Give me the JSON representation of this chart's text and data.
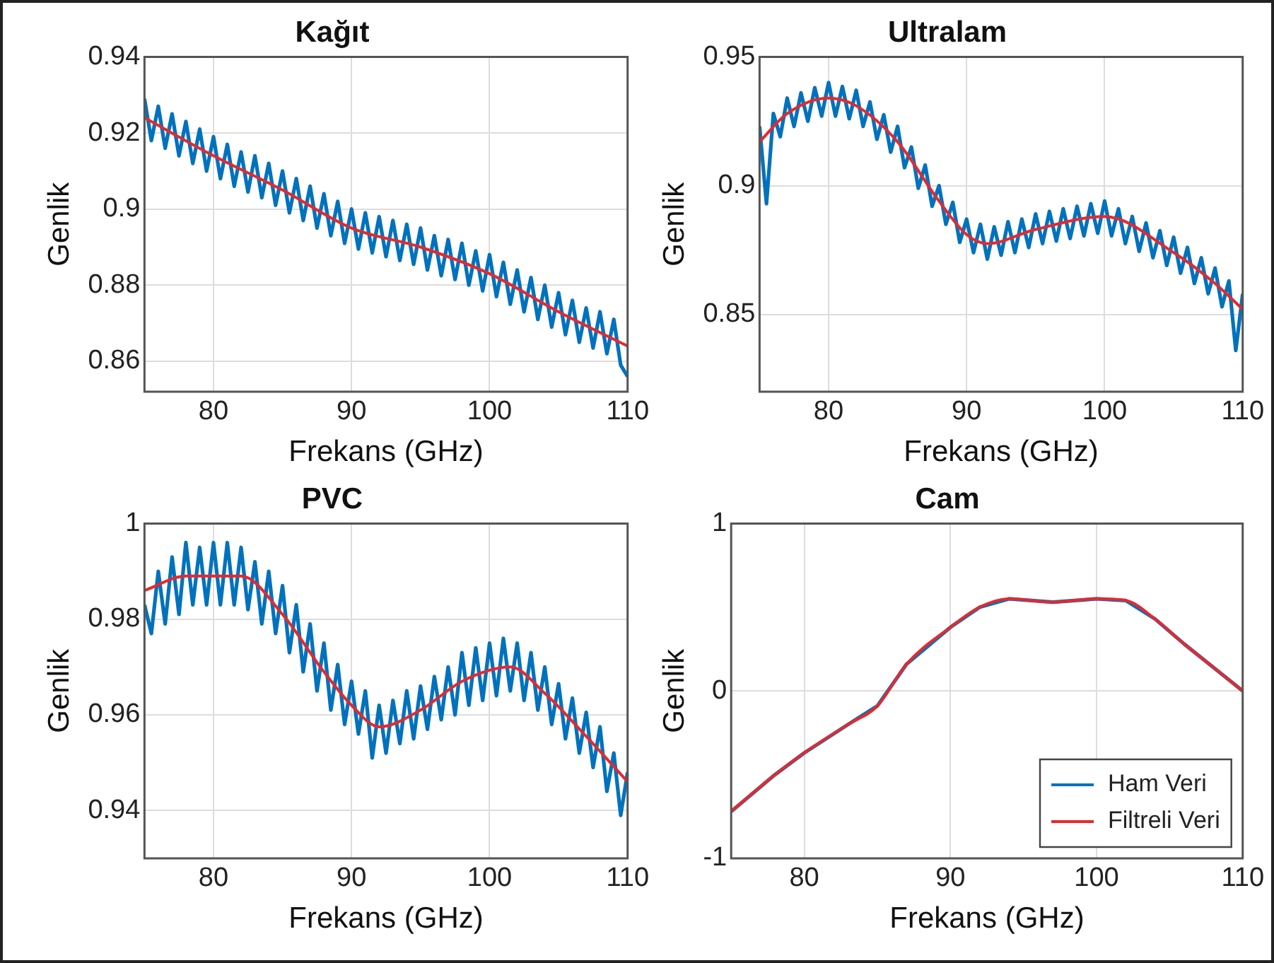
{
  "chart_data": [
    {
      "type": "line",
      "title": "Kağıt",
      "xlabel": "Frekans (GHz)",
      "ylabel": "Genlik",
      "xlim": [
        75,
        110
      ],
      "xticks": [
        80,
        90,
        100,
        110
      ],
      "ylim": [
        0.852,
        0.94
      ],
      "yticks": [
        0.86,
        0.88,
        0.9,
        0.92,
        0.94
      ],
      "grid": true,
      "legend": false,
      "series": [
        {
          "color": "#0072bd",
          "x": [
            75,
            75.5,
            76,
            76.5,
            77,
            77.5,
            78,
            78.5,
            79,
            79.5,
            80,
            80.5,
            81,
            81.5,
            82,
            82.5,
            83,
            83.5,
            84,
            84.5,
            85,
            85.5,
            86,
            86.5,
            87,
            87.5,
            88,
            88.5,
            89,
            89.5,
            90,
            90.5,
            91,
            91.5,
            92,
            92.5,
            93,
            93.5,
            94,
            94.5,
            95,
            95.5,
            96,
            96.5,
            97,
            97.5,
            98,
            98.5,
            99,
            99.5,
            100,
            100.5,
            101,
            101.5,
            102,
            102.5,
            103,
            103.5,
            104,
            104.5,
            105,
            105.5,
            106,
            106.5,
            107,
            107.5,
            108,
            108.5,
            109,
            109.5,
            110
          ],
          "values": [
            0.929,
            0.918,
            0.927,
            0.916,
            0.925,
            0.914,
            0.923,
            0.912,
            0.921,
            0.91,
            0.919,
            0.908,
            0.917,
            0.906,
            0.915,
            0.9045,
            0.914,
            0.903,
            0.912,
            0.901,
            0.91,
            0.899,
            0.908,
            0.897,
            0.906,
            0.895,
            0.904,
            0.893,
            0.902,
            0.891,
            0.9,
            0.8895,
            0.899,
            0.8885,
            0.898,
            0.8875,
            0.897,
            0.8865,
            0.896,
            0.8855,
            0.895,
            0.884,
            0.893,
            0.8825,
            0.892,
            0.8815,
            0.891,
            0.88,
            0.889,
            0.8785,
            0.888,
            0.877,
            0.886,
            0.875,
            0.884,
            0.873,
            0.882,
            0.871,
            0.88,
            0.869,
            0.878,
            0.867,
            0.876,
            0.865,
            0.874,
            0.8635,
            0.873,
            0.862,
            0.871,
            0.859,
            0.856
          ]
        },
        {
          "color": "#e8282b",
          "x": [
            75,
            80,
            85,
            90,
            95,
            100,
            105,
            110
          ],
          "values": [
            0.924,
            0.914,
            0.905,
            0.895,
            0.89,
            0.883,
            0.873,
            0.864
          ]
        }
      ]
    },
    {
      "type": "line",
      "title": "Ultralam",
      "xlabel": "Frekans (GHz)",
      "ylabel": "Genlik",
      "xlim": [
        75,
        110
      ],
      "xticks": [
        80,
        90,
        100,
        110
      ],
      "ylim": [
        0.82,
        0.95
      ],
      "yticks": [
        0.85,
        0.9,
        0.95
      ],
      "grid": true,
      "legend": false,
      "series": [
        {
          "color": "#0072bd",
          "x": [
            75,
            75.5,
            76,
            76.5,
            77,
            77.5,
            78,
            78.5,
            79,
            79.5,
            80,
            80.5,
            81,
            81.5,
            82,
            82.5,
            83,
            83.5,
            84,
            84.5,
            85,
            85.5,
            86,
            86.5,
            87,
            87.5,
            88,
            88.5,
            89,
            89.5,
            90,
            90.5,
            91,
            91.5,
            92,
            92.5,
            93,
            93.5,
            94,
            94.5,
            95,
            95.5,
            96,
            96.5,
            97,
            97.5,
            98,
            98.5,
            99,
            99.5,
            100,
            100.5,
            101,
            101.5,
            102,
            102.5,
            103,
            103.5,
            104,
            104.5,
            105,
            105.5,
            106,
            106.5,
            107,
            107.5,
            108,
            108.5,
            109,
            109.5,
            110
          ],
          "values": [
            0.923,
            0.893,
            0.928,
            0.919,
            0.934,
            0.923,
            0.936,
            0.925,
            0.938,
            0.927,
            0.94,
            0.927,
            0.9385,
            0.926,
            0.937,
            0.923,
            0.9325,
            0.918,
            0.9275,
            0.913,
            0.923,
            0.907,
            0.915,
            0.899,
            0.908,
            0.892,
            0.9,
            0.885,
            0.8935,
            0.878,
            0.887,
            0.874,
            0.885,
            0.8715,
            0.884,
            0.873,
            0.886,
            0.874,
            0.887,
            0.876,
            0.889,
            0.8775,
            0.89,
            0.8785,
            0.891,
            0.8795,
            0.892,
            0.8805,
            0.893,
            0.8815,
            0.894,
            0.8805,
            0.891,
            0.8775,
            0.888,
            0.8745,
            0.8855,
            0.872,
            0.8825,
            0.869,
            0.88,
            0.866,
            0.876,
            0.862,
            0.872,
            0.858,
            0.868,
            0.853,
            0.863,
            0.836,
            0.858
          ]
        },
        {
          "color": "#e8282b",
          "x": [
            75,
            77,
            80,
            82,
            85,
            88,
            90,
            91.5,
            95,
            100,
            105,
            108,
            110
          ],
          "values": [
            0.917,
            0.928,
            0.934,
            0.931,
            0.917,
            0.894,
            0.881,
            0.8775,
            0.883,
            0.888,
            0.874,
            0.862,
            0.852
          ]
        }
      ]
    },
    {
      "type": "line",
      "title": "PVC",
      "xlabel": "Frekans (GHz)",
      "ylabel": "Genlik",
      "xlim": [
        75,
        110
      ],
      "xticks": [
        80,
        90,
        100,
        110
      ],
      "ylim": [
        0.93,
        1
      ],
      "yticks": [
        0.94,
        0.96,
        0.98,
        1
      ],
      "grid": true,
      "legend": false,
      "series": [
        {
          "color": "#0072bd",
          "x": [
            75,
            75.5,
            76,
            76.5,
            77,
            77.5,
            78,
            78.5,
            79,
            79.5,
            80,
            80.5,
            81,
            81.5,
            82,
            82.5,
            83,
            83.5,
            84,
            84.5,
            85,
            85.5,
            86,
            86.5,
            87,
            87.5,
            88,
            88.5,
            89,
            89.5,
            90,
            90.5,
            91,
            91.5,
            92,
            92.5,
            93,
            93.5,
            94,
            94.5,
            95,
            95.5,
            96,
            96.5,
            97,
            97.5,
            98,
            98.5,
            99,
            99.5,
            100,
            100.5,
            101,
            101.5,
            102,
            102.5,
            103,
            103.5,
            104,
            104.5,
            105,
            105.5,
            106,
            106.5,
            107,
            107.5,
            108,
            108.5,
            109,
            109.5,
            110
          ],
          "values": [
            0.983,
            0.977,
            0.99,
            0.979,
            0.993,
            0.981,
            0.996,
            0.983,
            0.995,
            0.983,
            0.996,
            0.983,
            0.996,
            0.983,
            0.995,
            0.982,
            0.992,
            0.979,
            0.99,
            0.977,
            0.987,
            0.973,
            0.983,
            0.969,
            0.979,
            0.965,
            0.975,
            0.961,
            0.9705,
            0.958,
            0.967,
            0.956,
            0.965,
            0.951,
            0.962,
            0.952,
            0.963,
            0.954,
            0.965,
            0.955,
            0.966,
            0.957,
            0.968,
            0.959,
            0.97,
            0.96,
            0.973,
            0.962,
            0.974,
            0.963,
            0.975,
            0.964,
            0.976,
            0.965,
            0.975,
            0.963,
            0.973,
            0.961,
            0.97,
            0.958,
            0.9665,
            0.955,
            0.9635,
            0.952,
            0.9605,
            0.949,
            0.9575,
            0.944,
            0.952,
            0.939,
            0.948
          ]
        },
        {
          "color": "#e8282b",
          "x": [
            75,
            78,
            82,
            85,
            88,
            90,
            92,
            95,
            98,
            101.5,
            104,
            107,
            110
          ],
          "values": [
            0.986,
            0.989,
            0.989,
            0.981,
            0.969,
            0.962,
            0.9575,
            0.961,
            0.967,
            0.97,
            0.9645,
            0.9555,
            0.946
          ]
        }
      ]
    },
    {
      "type": "line",
      "title": "Cam",
      "xlabel": "Frekans (GHz)",
      "ylabel": "Genlik",
      "xlim": [
        75,
        110
      ],
      "xticks": [
        80,
        90,
        100,
        110
      ],
      "ylim": [
        -1,
        1
      ],
      "yticks": [
        -1,
        0,
        1
      ],
      "grid": true,
      "legend": "bottom right",
      "series": [
        {
          "name": "Ham Veri",
          "color": "#0072bd",
          "x": [
            75,
            78,
            80,
            83,
            85,
            87,
            90,
            92,
            94,
            97,
            100,
            102,
            104,
            106,
            108,
            110
          ],
          "values": [
            -0.72,
            -0.5,
            -0.37,
            -0.2,
            -0.09,
            0.16,
            0.38,
            0.5,
            0.55,
            0.53,
            0.55,
            0.54,
            0.43,
            0.28,
            0.14,
            0
          ]
        },
        {
          "name": "Filtreli Veri",
          "color": "#e8282b",
          "x": [
            75,
            78,
            80,
            83,
            85,
            87,
            90,
            92,
            94,
            97,
            100,
            102,
            104,
            106,
            108,
            110
          ],
          "values": [
            -0.72,
            -0.5,
            -0.37,
            -0.2,
            -0.09,
            0.16,
            0.38,
            0.5,
            0.55,
            0.53,
            0.55,
            0.54,
            0.43,
            0.28,
            0.14,
            0
          ]
        }
      ]
    }
  ]
}
